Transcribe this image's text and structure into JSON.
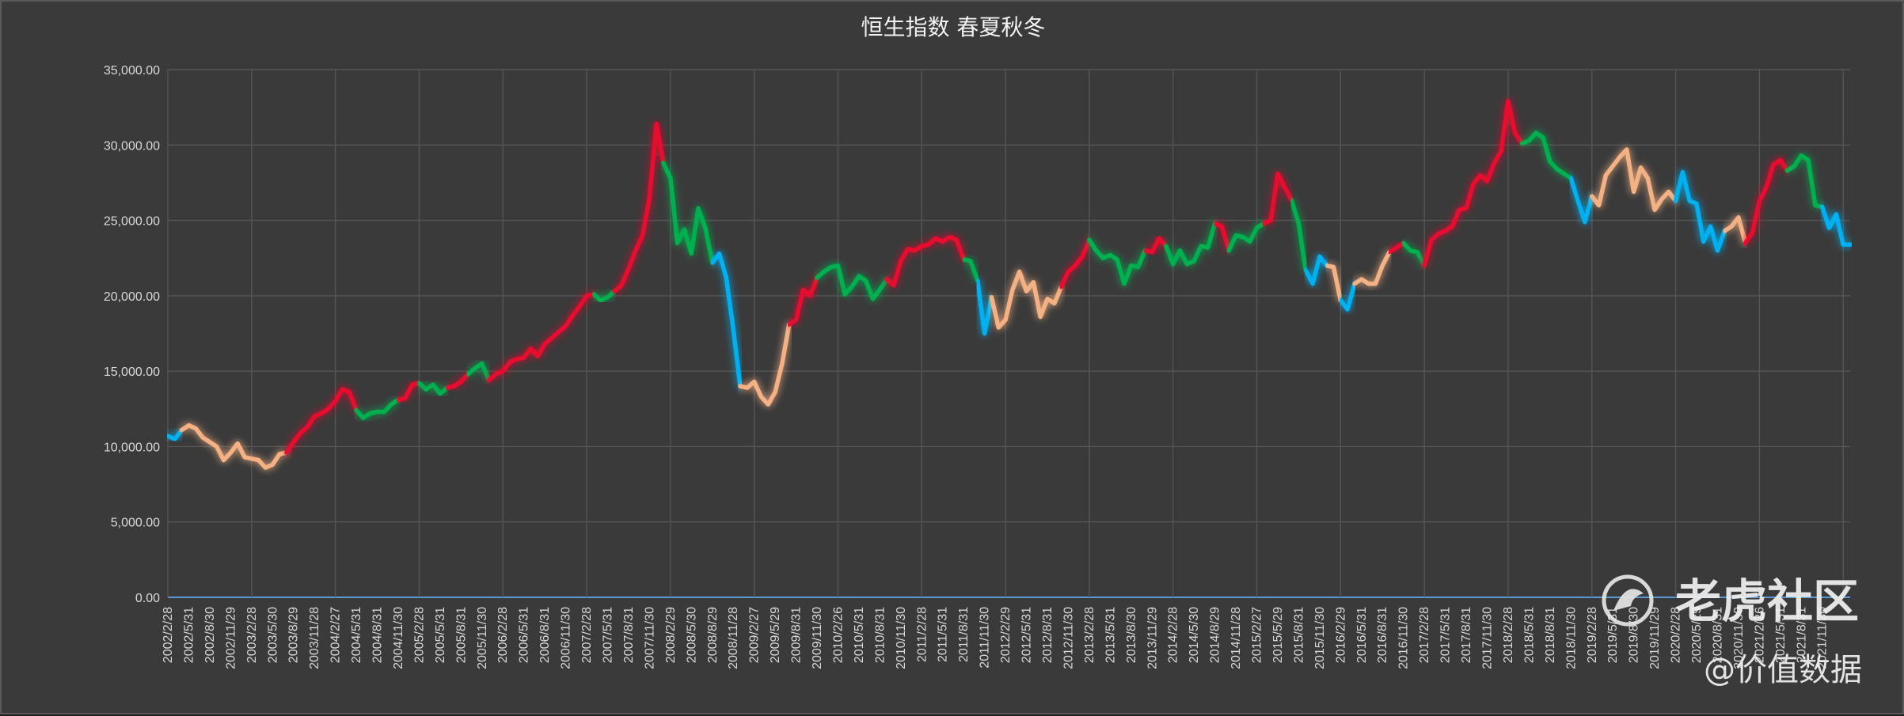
{
  "title": {
    "main": "恒生指数",
    "seasons": [
      {
        "label": "春",
        "color": "#f4b183"
      },
      {
        "label": "夏",
        "color": "#e8112d"
      },
      {
        "label": "秋",
        "color": "#00b050"
      },
      {
        "label": "冬",
        "color": "#00b0f0"
      }
    ]
  },
  "watermark": {
    "brand": "老虎社区",
    "handle": "@价值数据"
  },
  "chart_data": {
    "type": "line",
    "title": "恒生指数 春夏秋冬",
    "xlabel": "",
    "ylabel": "",
    "ylim": [
      0,
      35000
    ],
    "grid": true,
    "yticks": [
      0,
      5000,
      10000,
      15000,
      20000,
      25000,
      30000,
      35000
    ],
    "y_tick_labels": [
      "0.00",
      "5,000.00",
      "10,000.00",
      "15,000.00",
      "20,000.00",
      "25,000.00",
      "30,000.00",
      "35,000.00"
    ],
    "x_tick_labels": [
      "2002/2/28",
      "2002/5/31",
      "2002/8/30",
      "2002/11/29",
      "2003/2/28",
      "2003/5/30",
      "2003/8/29",
      "2003/11/28",
      "2004/2/27",
      "2004/5/31",
      "2004/8/31",
      "2004/11/30",
      "2005/2/28",
      "2005/5/31",
      "2005/8/31",
      "2005/11/30",
      "2006/2/28",
      "2006/5/31",
      "2006/8/31",
      "2006/11/30",
      "2007/2/28",
      "2007/5/31",
      "2007/8/31",
      "2007/11/30",
      "2008/2/29",
      "2008/5/30",
      "2008/8/29",
      "2008/11/28",
      "2009/2/27",
      "2009/5/29",
      "2009/8/31",
      "2009/11/30",
      "2010/2/26",
      "2010/5/31",
      "2010/8/31",
      "2010/11/30",
      "2011/2/28",
      "2011/5/31",
      "2011/8/31",
      "2011/11/30",
      "2012/2/29",
      "2012/5/31",
      "2012/8/31",
      "2012/11/30",
      "2013/2/28",
      "2013/5/31",
      "2013/8/30",
      "2013/11/29",
      "2014/2/28",
      "2014/5/30",
      "2014/8/29",
      "2014/11/28",
      "2015/2/27",
      "2015/5/29",
      "2015/8/31",
      "2015/11/30",
      "2016/2/29",
      "2016/5/31",
      "2016/8/31",
      "2016/11/30",
      "2017/2/28",
      "2017/5/31",
      "2017/8/31",
      "2017/11/30",
      "2018/2/28",
      "2018/5/31",
      "2018/8/31",
      "2018/11/30",
      "2019/2/28",
      "2019/5/31",
      "2019/8/30",
      "2019/11/29",
      "2020/2/28",
      "2020/5/29",
      "2020/8/31",
      "2020/11/30",
      "2021/2/26",
      "2021/5/31",
      "2021/8/31",
      "2021/11/30"
    ],
    "series": [
      {
        "name": "",
        "x_start": "2002/2/28",
        "step": "month",
        "values": [
          10700,
          10500,
          11100,
          11400,
          11200,
          10600,
          10300,
          10000,
          9100,
          9600,
          10200,
          9300,
          9200,
          9100,
          8600,
          8800,
          9500,
          9600,
          10300,
          10900,
          11300,
          12000,
          12200,
          12500,
          13000,
          13800,
          13600,
          12400,
          11900,
          12200,
          12300,
          12300,
          12800,
          13100,
          13200,
          14100,
          14200,
          13800,
          14100,
          13500,
          13900,
          14000,
          14300,
          14800,
          15200,
          15500,
          14400,
          14800,
          15000,
          15600,
          15800,
          15900,
          16500,
          16000,
          16800,
          17200,
          17600,
          18000,
          18700,
          19300,
          20000,
          20100,
          19700,
          19900,
          20300,
          20700,
          21800,
          23000,
          24000,
          26500,
          31400,
          28800,
          27800,
          23500,
          24400,
          22800,
          25800,
          24500,
          22200,
          22800,
          21200,
          17800,
          14000,
          13900,
          14300,
          13300,
          12800,
          13600,
          15500,
          18100,
          18400,
          20400,
          20000,
          21200,
          21600,
          21900,
          22000,
          20100,
          20600,
          21300,
          21000,
          19800,
          20400,
          21100,
          20700,
          22300,
          23100,
          23000,
          23300,
          23400,
          23800,
          23600,
          23900,
          23700,
          22400,
          22300,
          21000,
          17500,
          19900,
          17900,
          18400,
          20400,
          21600,
          20300,
          20900,
          18600,
          19800,
          19500,
          20600,
          21600,
          22000,
          22600,
          23700,
          23000,
          22500,
          22700,
          22400,
          20800,
          22000,
          21900,
          23000,
          22900,
          23800,
          23300,
          22100,
          23000,
          22100,
          22300,
          23300,
          23200,
          24800,
          24600,
          23000,
          24000,
          23900,
          23600,
          24500,
          24800,
          25000,
          28100,
          27200,
          26300,
          24800,
          21700,
          20800,
          22600,
          22000,
          21900,
          19700,
          19100,
          20800,
          21100,
          20800,
          20800,
          22000,
          22900,
          23200,
          23500,
          23000,
          22900,
          22000,
          23700,
          24100,
          24300,
          24600,
          25700,
          25800,
          27400,
          28000,
          27600,
          28800,
          29600,
          32900,
          30800,
          30100,
          30300,
          30800,
          30500,
          28900,
          28400,
          28100,
          27800,
          26300,
          24900,
          26600,
          26000,
          28000,
          28600,
          29200,
          29700,
          26900,
          28500,
          27800,
          25700,
          26400,
          26900,
          26300,
          28200,
          26300,
          26100,
          23600,
          24600,
          23000,
          24300,
          24600,
          25200,
          23500,
          24200,
          26300,
          27200,
          28700,
          29000,
          28300,
          28600,
          29300,
          29000,
          26000,
          25900,
          24500,
          25400,
          23400,
          23400
        ]
      }
    ],
    "season_colors": {
      "spring": "#f4b183",
      "summer": "#e8112d",
      "autumn": "#00b050",
      "winter": "#00b0f0"
    },
    "season_segments": [
      [
        "2002/2/28",
        "winter"
      ],
      [
        "2002/4/30",
        "spring"
      ],
      [
        "2003/7/31",
        "summer"
      ],
      [
        "2004/5/31",
        "autumn"
      ],
      [
        "2004/11/30",
        "summer"
      ],
      [
        "2005/2/28",
        "autumn"
      ],
      [
        "2005/6/30",
        "summer"
      ],
      [
        "2005/9/30",
        "autumn"
      ],
      [
        "2005/12/31",
        "summer"
      ],
      [
        "2007/3/31",
        "autumn"
      ],
      [
        "2007/6/30",
        "summer"
      ],
      [
        "2008/1/31",
        "autumn"
      ],
      [
        "2008/8/31",
        "winter"
      ],
      [
        "2008/12/31",
        "spring"
      ],
      [
        "2009/7/31",
        "summer"
      ],
      [
        "2009/11/30",
        "autumn"
      ],
      [
        "2010/9/30",
        "summer"
      ],
      [
        "2011/8/31",
        "autumn"
      ],
      [
        "2011/10/31",
        "winter"
      ],
      [
        "2011/12/31",
        "spring"
      ],
      [
        "2012/10/31",
        "summer"
      ],
      [
        "2013/2/28",
        "autumn"
      ],
      [
        "2013/10/31",
        "summer"
      ],
      [
        "2014/1/31",
        "autumn"
      ],
      [
        "2014/8/31",
        "summer"
      ],
      [
        "2014/10/31",
        "autumn"
      ],
      [
        "2015/3/31",
        "summer"
      ],
      [
        "2015/7/31",
        "autumn"
      ],
      [
        "2015/9/30",
        "winter"
      ],
      [
        "2015/12/31",
        "spring"
      ],
      [
        "2016/2/29",
        "winter"
      ],
      [
        "2016/4/30",
        "spring"
      ],
      [
        "2016/9/30",
        "summer"
      ],
      [
        "2016/11/30",
        "autumn"
      ],
      [
        "2017/2/28",
        "summer"
      ],
      [
        "2018/4/30",
        "autumn"
      ],
      [
        "2018/11/30",
        "winter"
      ],
      [
        "2019/2/28",
        "spring"
      ],
      [
        "2020/2/29",
        "winter"
      ],
      [
        "2020/9/30",
        "spring"
      ],
      [
        "2020/12/31",
        "summer"
      ],
      [
        "2021/6/30",
        "autumn"
      ],
      [
        "2021/11/30",
        "winter"
      ]
    ]
  }
}
